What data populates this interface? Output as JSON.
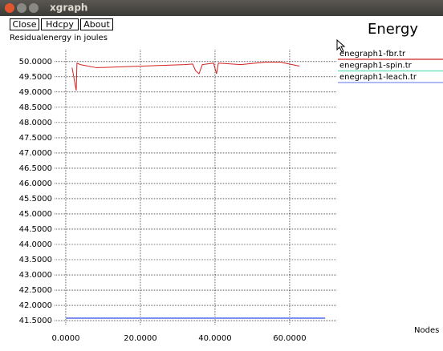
{
  "window": {
    "title": "xgraph",
    "buttons": [
      "Close",
      "Hdcpy",
      "About"
    ]
  },
  "chart_data": {
    "type": "line",
    "title": "Energy",
    "y_label": "Residualenergy in joules",
    "x_label": "Nodes",
    "xlim": [
      -3.0,
      72.7
    ],
    "ylim": [
      41.37,
      50.39
    ],
    "xticks": [
      {
        "value": 0,
        "label": "0.0000"
      },
      {
        "value": 20,
        "label": "20.0000"
      },
      {
        "value": 40,
        "label": "40.0000"
      },
      {
        "value": 60,
        "label": "60.0000"
      }
    ],
    "yticks": [
      {
        "value": 41.5,
        "label": "41.5000"
      },
      {
        "value": 42,
        "label": "42.0000"
      },
      {
        "value": 42.5,
        "label": "42.5000"
      },
      {
        "value": 43,
        "label": "43.0000"
      },
      {
        "value": 43.5,
        "label": "43.5000"
      },
      {
        "value": 44,
        "label": "44.0000"
      },
      {
        "value": 44.5,
        "label": "44.5000"
      },
      {
        "value": 45,
        "label": "45.0000"
      },
      {
        "value": 45.5,
        "label": "45.5000"
      },
      {
        "value": 46,
        "label": "46.0000"
      },
      {
        "value": 46.5,
        "label": "46.5000"
      },
      {
        "value": 47,
        "label": "47.0000"
      },
      {
        "value": 47.5,
        "label": "47.5000"
      },
      {
        "value": 48,
        "label": "48.0000"
      },
      {
        "value": 48.5,
        "label": "48.5000"
      },
      {
        "value": 49,
        "label": "49.0000"
      },
      {
        "value": 49.5,
        "label": "49.5000"
      },
      {
        "value": 50,
        "label": "50.0000"
      }
    ],
    "grid": true,
    "series": [
      {
        "name": "enegraph1-fbr.tr",
        "color": "#d42020",
        "x": [
          1.7,
          2.8,
          3.0,
          3.9,
          8.2,
          31.8,
          34.0,
          34.8,
          35.7,
          36.6,
          39.6,
          40.4,
          40.9,
          46.9,
          53.3,
          57.6,
          62.6
        ],
        "values": [
          49.8,
          49.05,
          49.95,
          49.9,
          49.8,
          49.9,
          49.92,
          49.7,
          49.6,
          49.9,
          49.95,
          49.6,
          49.95,
          49.9,
          49.98,
          49.98,
          49.85
        ]
      },
      {
        "name": "enegraph1-spin.tr",
        "color": "#5fe0b0",
        "x": [],
        "values": []
      },
      {
        "name": "enegraph1-leach.tr",
        "color": "#7f8ff0",
        "x": [
          0,
          69.5
        ],
        "values": [
          41.58,
          41.58
        ]
      }
    ]
  }
}
